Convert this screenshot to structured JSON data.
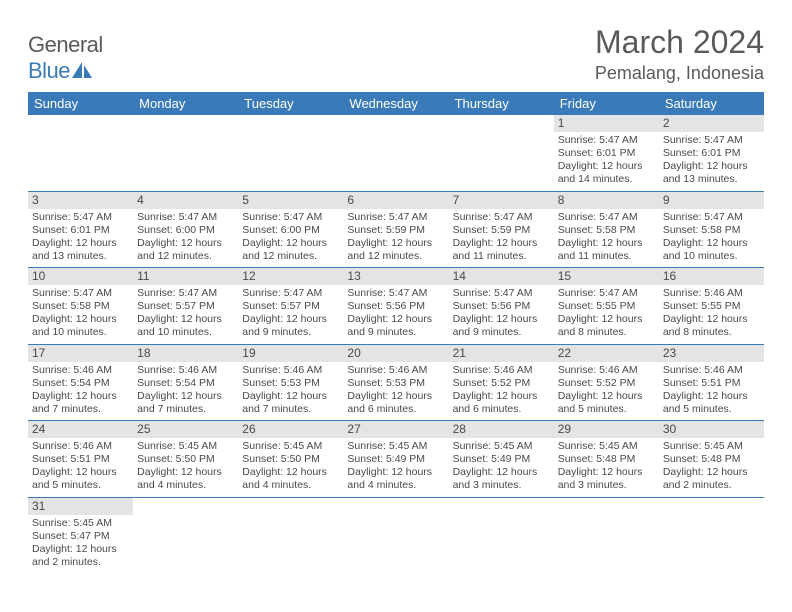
{
  "logo": {
    "main": "General",
    "sub": "Blue"
  },
  "title": "March 2024",
  "location": "Pemalang, Indonesia",
  "colors": {
    "header_bg": "#3a7ab8",
    "header_text": "#ffffff",
    "daynum_bg": "#e4e4e4",
    "text": "#4a4a4a",
    "border": "#3a7ab8"
  },
  "dayNames": [
    "Sunday",
    "Monday",
    "Tuesday",
    "Wednesday",
    "Thursday",
    "Friday",
    "Saturday"
  ],
  "weeks": [
    [
      {
        "n": "",
        "sr": "",
        "ss": "",
        "dl": ""
      },
      {
        "n": "",
        "sr": "",
        "ss": "",
        "dl": ""
      },
      {
        "n": "",
        "sr": "",
        "ss": "",
        "dl": ""
      },
      {
        "n": "",
        "sr": "",
        "ss": "",
        "dl": ""
      },
      {
        "n": "",
        "sr": "",
        "ss": "",
        "dl": ""
      },
      {
        "n": "1",
        "sr": "Sunrise: 5:47 AM",
        "ss": "Sunset: 6:01 PM",
        "dl": "Daylight: 12 hours and 14 minutes."
      },
      {
        "n": "2",
        "sr": "Sunrise: 5:47 AM",
        "ss": "Sunset: 6:01 PM",
        "dl": "Daylight: 12 hours and 13 minutes."
      }
    ],
    [
      {
        "n": "3",
        "sr": "Sunrise: 5:47 AM",
        "ss": "Sunset: 6:01 PM",
        "dl": "Daylight: 12 hours and 13 minutes."
      },
      {
        "n": "4",
        "sr": "Sunrise: 5:47 AM",
        "ss": "Sunset: 6:00 PM",
        "dl": "Daylight: 12 hours and 12 minutes."
      },
      {
        "n": "5",
        "sr": "Sunrise: 5:47 AM",
        "ss": "Sunset: 6:00 PM",
        "dl": "Daylight: 12 hours and 12 minutes."
      },
      {
        "n": "6",
        "sr": "Sunrise: 5:47 AM",
        "ss": "Sunset: 5:59 PM",
        "dl": "Daylight: 12 hours and 12 minutes."
      },
      {
        "n": "7",
        "sr": "Sunrise: 5:47 AM",
        "ss": "Sunset: 5:59 PM",
        "dl": "Daylight: 12 hours and 11 minutes."
      },
      {
        "n": "8",
        "sr": "Sunrise: 5:47 AM",
        "ss": "Sunset: 5:58 PM",
        "dl": "Daylight: 12 hours and 11 minutes."
      },
      {
        "n": "9",
        "sr": "Sunrise: 5:47 AM",
        "ss": "Sunset: 5:58 PM",
        "dl": "Daylight: 12 hours and 10 minutes."
      }
    ],
    [
      {
        "n": "10",
        "sr": "Sunrise: 5:47 AM",
        "ss": "Sunset: 5:58 PM",
        "dl": "Daylight: 12 hours and 10 minutes."
      },
      {
        "n": "11",
        "sr": "Sunrise: 5:47 AM",
        "ss": "Sunset: 5:57 PM",
        "dl": "Daylight: 12 hours and 10 minutes."
      },
      {
        "n": "12",
        "sr": "Sunrise: 5:47 AM",
        "ss": "Sunset: 5:57 PM",
        "dl": "Daylight: 12 hours and 9 minutes."
      },
      {
        "n": "13",
        "sr": "Sunrise: 5:47 AM",
        "ss": "Sunset: 5:56 PM",
        "dl": "Daylight: 12 hours and 9 minutes."
      },
      {
        "n": "14",
        "sr": "Sunrise: 5:47 AM",
        "ss": "Sunset: 5:56 PM",
        "dl": "Daylight: 12 hours and 9 minutes."
      },
      {
        "n": "15",
        "sr": "Sunrise: 5:47 AM",
        "ss": "Sunset: 5:55 PM",
        "dl": "Daylight: 12 hours and 8 minutes."
      },
      {
        "n": "16",
        "sr": "Sunrise: 5:46 AM",
        "ss": "Sunset: 5:55 PM",
        "dl": "Daylight: 12 hours and 8 minutes."
      }
    ],
    [
      {
        "n": "17",
        "sr": "Sunrise: 5:46 AM",
        "ss": "Sunset: 5:54 PM",
        "dl": "Daylight: 12 hours and 7 minutes."
      },
      {
        "n": "18",
        "sr": "Sunrise: 5:46 AM",
        "ss": "Sunset: 5:54 PM",
        "dl": "Daylight: 12 hours and 7 minutes."
      },
      {
        "n": "19",
        "sr": "Sunrise: 5:46 AM",
        "ss": "Sunset: 5:53 PM",
        "dl": "Daylight: 12 hours and 7 minutes."
      },
      {
        "n": "20",
        "sr": "Sunrise: 5:46 AM",
        "ss": "Sunset: 5:53 PM",
        "dl": "Daylight: 12 hours and 6 minutes."
      },
      {
        "n": "21",
        "sr": "Sunrise: 5:46 AM",
        "ss": "Sunset: 5:52 PM",
        "dl": "Daylight: 12 hours and 6 minutes."
      },
      {
        "n": "22",
        "sr": "Sunrise: 5:46 AM",
        "ss": "Sunset: 5:52 PM",
        "dl": "Daylight: 12 hours and 5 minutes."
      },
      {
        "n": "23",
        "sr": "Sunrise: 5:46 AM",
        "ss": "Sunset: 5:51 PM",
        "dl": "Daylight: 12 hours and 5 minutes."
      }
    ],
    [
      {
        "n": "24",
        "sr": "Sunrise: 5:46 AM",
        "ss": "Sunset: 5:51 PM",
        "dl": "Daylight: 12 hours and 5 minutes."
      },
      {
        "n": "25",
        "sr": "Sunrise: 5:45 AM",
        "ss": "Sunset: 5:50 PM",
        "dl": "Daylight: 12 hours and 4 minutes."
      },
      {
        "n": "26",
        "sr": "Sunrise: 5:45 AM",
        "ss": "Sunset: 5:50 PM",
        "dl": "Daylight: 12 hours and 4 minutes."
      },
      {
        "n": "27",
        "sr": "Sunrise: 5:45 AM",
        "ss": "Sunset: 5:49 PM",
        "dl": "Daylight: 12 hours and 4 minutes."
      },
      {
        "n": "28",
        "sr": "Sunrise: 5:45 AM",
        "ss": "Sunset: 5:49 PM",
        "dl": "Daylight: 12 hours and 3 minutes."
      },
      {
        "n": "29",
        "sr": "Sunrise: 5:45 AM",
        "ss": "Sunset: 5:48 PM",
        "dl": "Daylight: 12 hours and 3 minutes."
      },
      {
        "n": "30",
        "sr": "Sunrise: 5:45 AM",
        "ss": "Sunset: 5:48 PM",
        "dl": "Daylight: 12 hours and 2 minutes."
      }
    ],
    [
      {
        "n": "31",
        "sr": "Sunrise: 5:45 AM",
        "ss": "Sunset: 5:47 PM",
        "dl": "Daylight: 12 hours and 2 minutes."
      },
      {
        "n": "",
        "sr": "",
        "ss": "",
        "dl": ""
      },
      {
        "n": "",
        "sr": "",
        "ss": "",
        "dl": ""
      },
      {
        "n": "",
        "sr": "",
        "ss": "",
        "dl": ""
      },
      {
        "n": "",
        "sr": "",
        "ss": "",
        "dl": ""
      },
      {
        "n": "",
        "sr": "",
        "ss": "",
        "dl": ""
      },
      {
        "n": "",
        "sr": "",
        "ss": "",
        "dl": ""
      }
    ]
  ]
}
